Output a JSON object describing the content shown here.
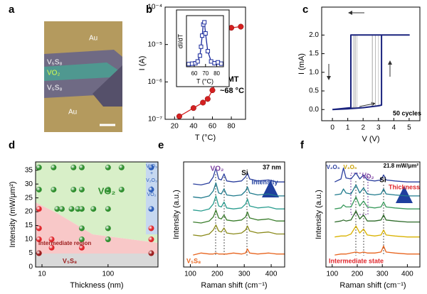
{
  "micrograph": {
    "panel": "a",
    "labels": [
      "Au",
      "V₅S₈",
      "VO₂",
      "V₅S₈",
      "Au"
    ]
  },
  "chart_data": [
    {
      "type": "line",
      "panel": "b",
      "xlabel": "T (°C)",
      "ylabel": "I (A)",
      "color": "#d42020",
      "marker": "circle",
      "log_y": true,
      "x": [
        25,
        40,
        50,
        55,
        60,
        63,
        65,
        67,
        68,
        70,
        72,
        80,
        90
      ],
      "values": [
        1.2e-07,
        2e-07,
        2.8e-07,
        3.5e-07,
        6e-07,
        9e-07,
        1.3e-06,
        2e-06,
        2.6e-06,
        2.4e-05,
        2.7e-05,
        2.8e-05,
        3e-05
      ],
      "xlim": [
        10,
        95
      ],
      "xticks": [
        20,
        40,
        60,
        80
      ],
      "ylim": [
        1e-07,
        0.0001
      ],
      "yticks": [
        {
          "value": 1e-07,
          "label": "10⁻⁷"
        },
        {
          "value": 1e-06,
          "label": "10⁻⁶"
        },
        {
          "value": 1e-05,
          "label": "10⁻⁵"
        },
        {
          "value": 0.0001,
          "label": "10⁻⁴"
        }
      ],
      "annotations": [
        "IMT",
        "~68 °C"
      ]
    },
    {
      "type": "line",
      "xlabel": "T (°C)",
      "ylabel": "dI/dT",
      "color": "#1a2a9c",
      "marker": "square",
      "x": [
        55,
        58,
        61,
        63,
        65,
        66,
        67,
        68,
        69,
        70,
        72,
        75,
        78,
        81,
        84
      ],
      "values": [
        0.06,
        0.07,
        0.08,
        0.12,
        0.25,
        0.45,
        0.7,
        0.95,
        1.0,
        0.75,
        0.35,
        0.12,
        0.08,
        0.1,
        0.07
      ],
      "xlim": [
        53,
        86
      ],
      "xticks": [
        60,
        70,
        80
      ],
      "ylim": [
        0,
        1.15
      ]
    },
    {
      "type": "line",
      "panel": "c",
      "xlabel": "V (V)",
      "ylabel": "I (mA)",
      "xlim": [
        -0.7,
        5.7
      ],
      "xticks": [
        0,
        1,
        2,
        3,
        4,
        5
      ],
      "ylim": [
        -0.3,
        2.75
      ],
      "yticks": [
        {
          "value": 0,
          "label": "0.0"
        },
        0.5,
        {
          "value": 1,
          "label": "1.0"
        },
        1.5,
        {
          "value": 2,
          "label": "2.0"
        }
      ],
      "series": [
        {
          "color": "#b8b8b8",
          "line_width": 1,
          "x": [
            0,
            1,
            2,
            2.8,
            2.8,
            5,
            3,
            1.5,
            1.5,
            0
          ],
          "values": [
            0,
            0.02,
            0.05,
            0.1,
            2,
            2,
            2,
            2,
            0.06,
            0
          ]
        },
        {
          "color": "#c8c8c8",
          "line_width": 1,
          "x": [
            0,
            1,
            2,
            3.0,
            3.0,
            5,
            3,
            1.6,
            1.6,
            0
          ],
          "values": [
            0,
            0.02,
            0.05,
            0.11,
            2,
            2,
            2,
            2,
            0.07,
            0
          ]
        },
        {
          "color": "#a6a6a6",
          "line_width": 1,
          "x": [
            0,
            1,
            2,
            2.6,
            2.6,
            5,
            3,
            1.4,
            1.4,
            0
          ],
          "values": [
            0,
            0.02,
            0.05,
            0.09,
            2,
            2,
            2,
            2,
            0.06,
            0
          ]
        },
        {
          "color": "#1a237e",
          "line_width": 2,
          "x": [
            0,
            1,
            2,
            3,
            3.2,
            3.2,
            5,
            3,
            1.2,
            1.2,
            0
          ],
          "values": [
            0,
            0.02,
            0.05,
            0.1,
            0.12,
            2,
            2,
            2,
            2,
            0.05,
            0
          ]
        }
      ],
      "annotations": [
        "50 cycles"
      ]
    },
    {
      "type": "scatter",
      "panel": "d",
      "xlabel": "Thickness (nm)",
      "ylabel": "Intensity (mW/μm²)",
      "log_x": true,
      "xlim": [
        8,
        570
      ],
      "xticks": [
        10,
        100
      ],
      "ylim": [
        0,
        38
      ],
      "yticks": [
        0,
        5,
        10,
        15,
        20,
        25,
        30,
        35
      ],
      "series": [
        {
          "color": "#2f8f2f",
          "x": [
            9,
            15,
            30,
            40,
            100,
            160,
            9,
            15,
            30,
            40,
            100,
            160,
            17,
            20,
            28,
            35,
            40,
            60,
            100,
            40,
            100,
            40,
            100
          ],
          "values": [
            36,
            36,
            36,
            36,
            36,
            36,
            28,
            28,
            28,
            28,
            28,
            28,
            21,
            21,
            21,
            21,
            21,
            21,
            21,
            14,
            14,
            10,
            10
          ]
        },
        {
          "color": "#e0262b",
          "x": [
            9,
            9,
            9,
            14,
            14,
            40,
            450,
            450
          ],
          "values": [
            21,
            14,
            10,
            10,
            7,
            7,
            14,
            10
          ]
        },
        {
          "color": "#9b1b1b",
          "x": [
            9,
            450
          ],
          "values": [
            5,
            5
          ]
        },
        {
          "color": "#2a5cb8",
          "x": [
            450,
            450,
            450
          ],
          "values": [
            36,
            28,
            21
          ]
        }
      ],
      "annotations": [
        "VO₂",
        "Intermediate region",
        "V₅S₈",
        "V₂O₃",
        "+",
        "V₂O₃",
        "+",
        "VO₂"
      ]
    },
    {
      "type": "line",
      "panel": "e",
      "xlabel": "Raman shift (cm⁻¹)",
      "ylabel": "Intensity (a.u.)",
      "xlim": [
        75,
        450
      ],
      "xticks": [
        100,
        200,
        300,
        400
      ],
      "ylim": [
        0,
        10.5
      ],
      "series": [
        {
          "color": "#2b3f9e",
          "x": [
            110,
            140,
            170,
            185,
            195,
            205,
            215,
            225,
            235,
            260,
            290,
            305,
            312,
            320,
            350,
            390,
            420,
            450
          ],
          "values": [
            8.3,
            8.2,
            8.4,
            9.0,
            9.9,
            8.8,
            8.7,
            9.3,
            8.6,
            8.5,
            8.6,
            9.0,
            9.4,
            8.8,
            8.6,
            8.7,
            8.5,
            8.5
          ]
        },
        {
          "color": "#1f7a8c",
          "x": [
            110,
            140,
            170,
            185,
            195,
            205,
            215,
            225,
            235,
            260,
            290,
            305,
            312,
            320,
            350,
            390,
            420,
            450
          ],
          "values": [
            7.0,
            6.9,
            7.1,
            7.6,
            8.4,
            7.4,
            7.3,
            7.8,
            7.2,
            7.1,
            7.2,
            7.6,
            8.0,
            7.4,
            7.2,
            7.3,
            7.1,
            7.1
          ]
        },
        {
          "color": "#2a9d8f",
          "x": [
            110,
            140,
            170,
            185,
            195,
            205,
            215,
            225,
            235,
            260,
            290,
            305,
            312,
            320,
            350,
            390,
            420,
            450
          ],
          "values": [
            5.7,
            5.6,
            5.8,
            6.3,
            7.1,
            6.1,
            6.0,
            6.5,
            5.9,
            5.8,
            5.9,
            6.3,
            6.8,
            6.1,
            5.9,
            6.0,
            5.8,
            5.8
          ]
        },
        {
          "color": "#3a7d2c",
          "x": [
            110,
            140,
            170,
            185,
            195,
            205,
            215,
            225,
            235,
            260,
            290,
            305,
            312,
            320,
            350,
            390,
            420,
            450
          ],
          "values": [
            4.5,
            4.4,
            4.6,
            5.0,
            5.7,
            4.9,
            4.8,
            5.2,
            4.7,
            4.6,
            4.7,
            5.0,
            5.5,
            4.9,
            4.7,
            4.8,
            4.6,
            4.6
          ]
        },
        {
          "color": "#8a8a1a",
          "x": [
            110,
            140,
            170,
            185,
            195,
            205,
            215,
            225,
            235,
            260,
            290,
            305,
            312,
            320,
            350,
            390,
            420,
            450
          ],
          "values": [
            3.2,
            3.1,
            3.3,
            3.7,
            4.2,
            3.6,
            3.5,
            3.9,
            3.4,
            3.3,
            3.4,
            3.7,
            4.1,
            3.6,
            3.4,
            3.5,
            3.3,
            3.3
          ]
        },
        {
          "color": "#e8641e",
          "x": [
            110,
            140,
            170,
            185,
            195,
            205,
            215,
            225,
            235,
            260,
            290,
            305,
            312,
            320,
            350,
            390,
            420,
            450
          ],
          "values": [
            1.2,
            1.4,
            1.3,
            1.3,
            1.4,
            1.3,
            1.3,
            1.3,
            1.3,
            1.4,
            1.3,
            1.4,
            1.8,
            1.4,
            1.3,
            1.4,
            1.3,
            1.3
          ]
        }
      ],
      "annotations": [
        "37 nm",
        "VO₂",
        "Si",
        "Intensity",
        "V₅S₈"
      ]
    },
    {
      "type": "line",
      "panel": "f",
      "xlabel": "Raman shift (cm⁻¹)",
      "ylabel": "Intensity (a.u.)",
      "xlim": [
        75,
        450
      ],
      "xticks": [
        100,
        200,
        300,
        400
      ],
      "ylim": [
        0,
        10.5
      ],
      "series": [
        {
          "color": "#2b3f9e",
          "x": [
            110,
            135,
            145,
            155,
            175,
            195,
            210,
            225,
            240,
            270,
            295,
            305,
            315,
            350,
            400,
            450
          ],
          "values": [
            8.5,
            8.8,
            9.9,
            8.9,
            8.8,
            9.4,
            8.8,
            9.2,
            8.7,
            8.6,
            8.7,
            9.2,
            8.7,
            8.6,
            8.5,
            8.5
          ]
        },
        {
          "color": "#1f7a8c",
          "x": [
            110,
            135,
            145,
            155,
            175,
            195,
            210,
            225,
            240,
            270,
            295,
            305,
            315,
            350,
            400,
            450
          ],
          "values": [
            7.2,
            7.3,
            7.8,
            7.4,
            7.3,
            8.2,
            7.4,
            7.9,
            7.3,
            7.2,
            7.3,
            7.8,
            7.3,
            7.2,
            7.1,
            7.1
          ]
        },
        {
          "color": "#3a9a5c",
          "x": [
            110,
            135,
            145,
            155,
            175,
            195,
            210,
            225,
            240,
            270,
            295,
            305,
            315,
            350,
            400,
            450
          ],
          "values": [
            5.8,
            5.9,
            6.2,
            6.0,
            6.0,
            7.0,
            6.1,
            6.6,
            6.0,
            5.9,
            6.0,
            6.5,
            6.0,
            5.9,
            5.8,
            5.8
          ]
        },
        {
          "color": "#2e6b2a",
          "x": [
            110,
            135,
            145,
            155,
            175,
            195,
            210,
            225,
            240,
            270,
            295,
            305,
            315,
            350,
            400,
            450
          ],
          "values": [
            4.5,
            4.6,
            4.7,
            4.6,
            4.7,
            5.6,
            4.8,
            5.2,
            4.6,
            4.6,
            4.7,
            5.2,
            4.7,
            4.6,
            4.5,
            4.5
          ]
        },
        {
          "color": "#d9b200",
          "x": [
            110,
            135,
            145,
            155,
            175,
            195,
            210,
            225,
            240,
            270,
            295,
            305,
            315,
            350,
            400,
            450
          ],
          "values": [
            3.0,
            3.1,
            3.1,
            3.1,
            3.3,
            4.1,
            3.4,
            3.8,
            3.2,
            3.1,
            3.2,
            3.7,
            3.2,
            3.1,
            3.0,
            3.0
          ]
        },
        {
          "color": "#e8641e",
          "x": [
            110,
            135,
            145,
            155,
            175,
            195,
            210,
            225,
            240,
            270,
            295,
            305,
            315,
            350,
            400,
            450
          ],
          "values": [
            1.2,
            1.3,
            1.3,
            1.3,
            1.4,
            1.5,
            1.4,
            1.5,
            1.4,
            1.4,
            1.5,
            2.1,
            1.5,
            1.4,
            1.3,
            1.3
          ]
        }
      ],
      "annotations": [
        "21.8 mW/μm²",
        "V₂O₃",
        "V₃O₅",
        "VO₂",
        "Si",
        "Thickness",
        "Intermediate state"
      ]
    }
  ]
}
